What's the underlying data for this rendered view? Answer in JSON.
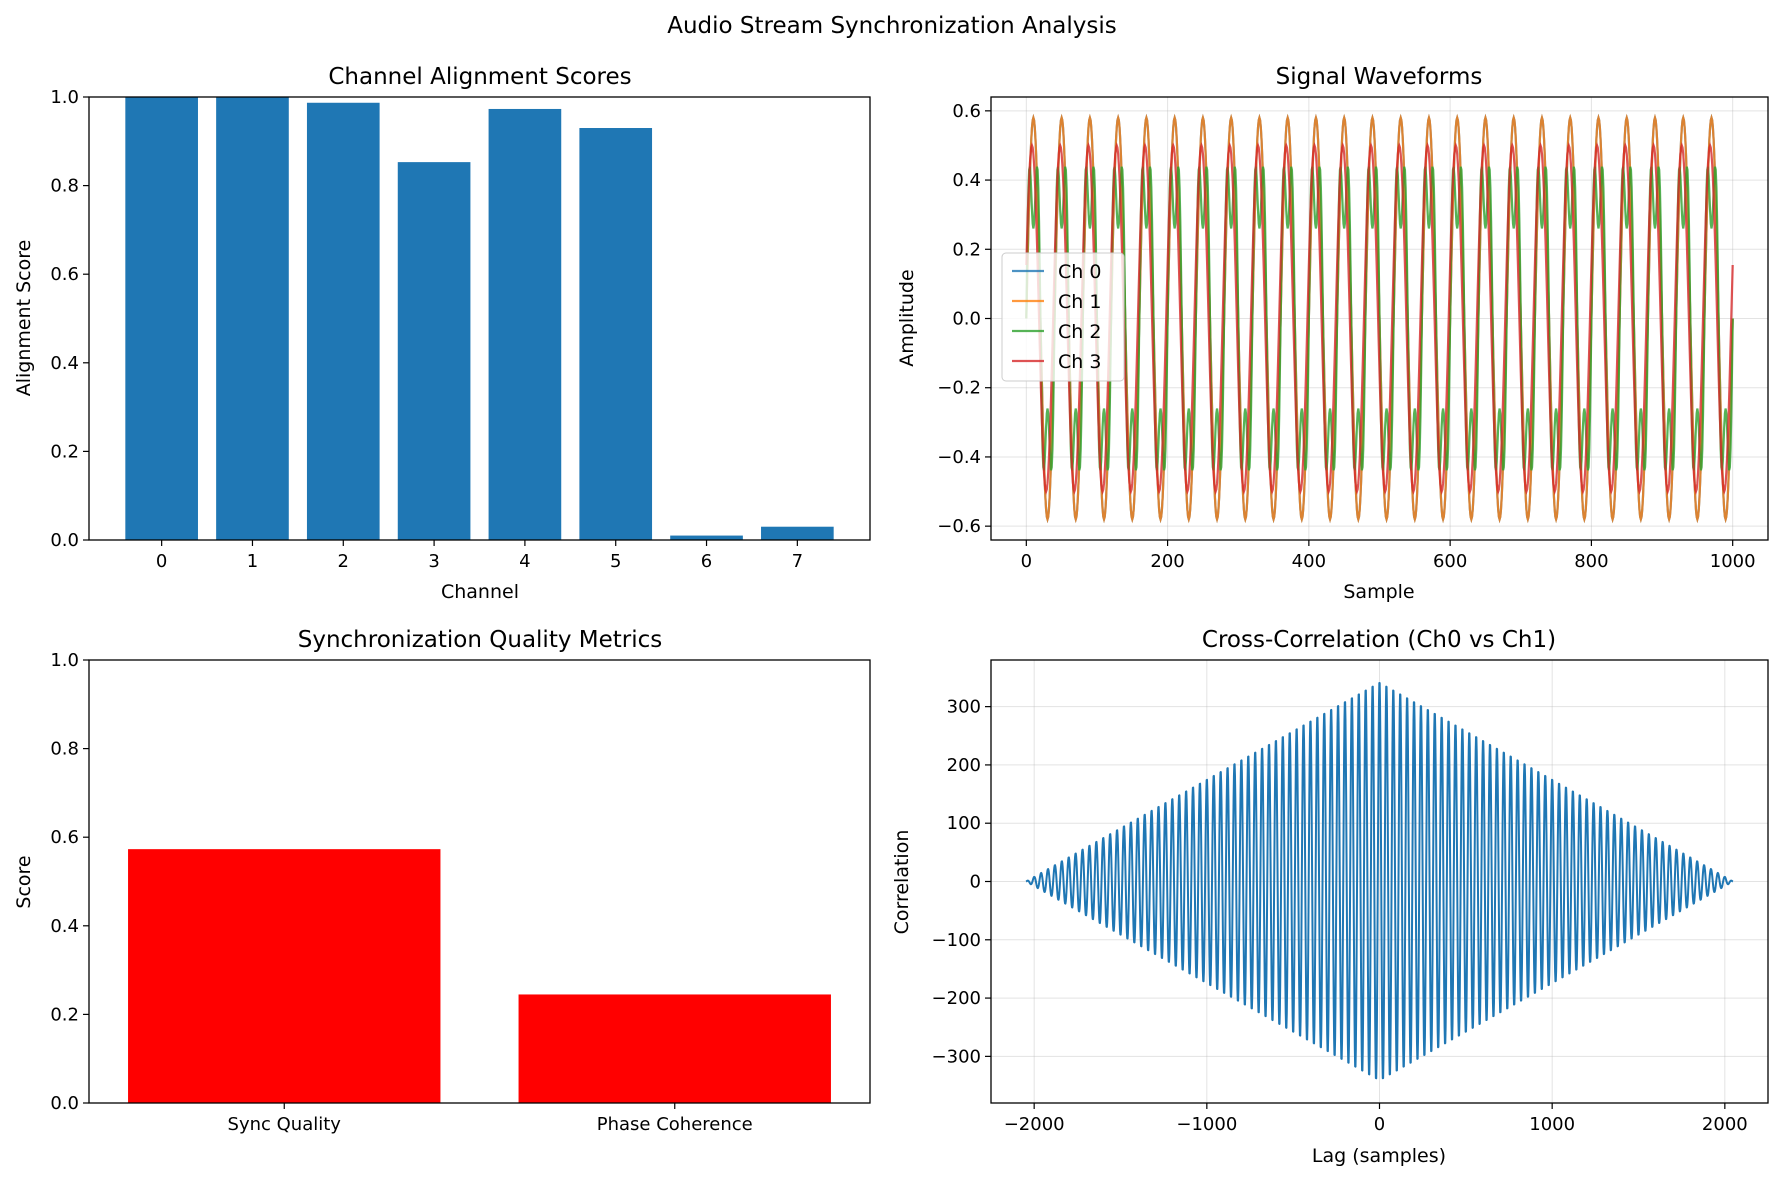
{
  "figure": {
    "suptitle": "Audio Stream Synchronization Analysis"
  },
  "chart_data": [
    {
      "type": "bar",
      "title": "Channel Alignment Scores",
      "xlabel": "Channel",
      "ylabel": "Alignment Score",
      "categories": [
        "0",
        "1",
        "2",
        "3",
        "4",
        "5",
        "6",
        "7"
      ],
      "values": [
        1.0,
        1.0,
        0.987,
        0.853,
        0.973,
        0.93,
        0.01,
        0.03
      ],
      "ylim": [
        0,
        1.0
      ],
      "yticks": [
        0.0,
        0.2,
        0.4,
        0.6,
        0.8,
        1.0
      ],
      "color": "#1f77b4",
      "grid": false
    },
    {
      "type": "line",
      "title": "Signal Waveforms",
      "xlabel": "Sample",
      "ylabel": "Amplitude",
      "xlim": [
        -50,
        1050
      ],
      "ylim": [
        -0.64,
        0.64
      ],
      "xticks": [
        0,
        200,
        400,
        600,
        800,
        1000
      ],
      "yticks": [
        -0.6,
        -0.4,
        -0.2,
        0.0,
        0.2,
        0.4,
        0.6
      ],
      "grid": true,
      "legend": "center-left",
      "series": [
        {
          "name": "Ch 0",
          "color": "#1f77b4",
          "amplitude": 0.58,
          "period": 40,
          "phase": 0.0,
          "harmonic": 0.0
        },
        {
          "name": "Ch 1",
          "color": "#ff7f0e",
          "amplitude": 0.58,
          "period": 40,
          "phase": 0.0,
          "harmonic": 0.0
        },
        {
          "name": "Ch 2",
          "color": "#2ca02c",
          "amplitude": 0.44,
          "period": 40,
          "phase": 0.0,
          "harmonic": 0.18
        },
        {
          "name": "Ch 3",
          "color": "#d62728",
          "amplitude": 0.5,
          "period": 40,
          "phase": 0.05,
          "harmonic": 0.0
        }
      ]
    },
    {
      "type": "bar",
      "title": "Synchronization Quality Metrics",
      "xlabel": "",
      "ylabel": "Score",
      "categories": [
        "Sync Quality",
        "Phase Coherence"
      ],
      "values": [
        0.573,
        0.245
      ],
      "ylim": [
        0,
        1.0
      ],
      "yticks": [
        0.0,
        0.2,
        0.4,
        0.6,
        0.8,
        1.0
      ],
      "color": "#ff0000",
      "grid": false
    },
    {
      "type": "line",
      "title": "Cross-Correlation (Ch0 vs Ch1)",
      "xlabel": "Lag (samples)",
      "ylabel": "Correlation",
      "xlim": [
        -2250,
        2250
      ],
      "ylim": [
        -380,
        380
      ],
      "xticks": [
        -2000,
        -1000,
        0,
        1000,
        2000
      ],
      "yticks": [
        -300,
        -200,
        -100,
        0,
        100,
        200,
        300
      ],
      "grid": true,
      "series": [
        {
          "name": "",
          "color": "#1f77b4",
          "peak": 345,
          "lag_extent": 2047,
          "period": 40
        }
      ]
    }
  ]
}
